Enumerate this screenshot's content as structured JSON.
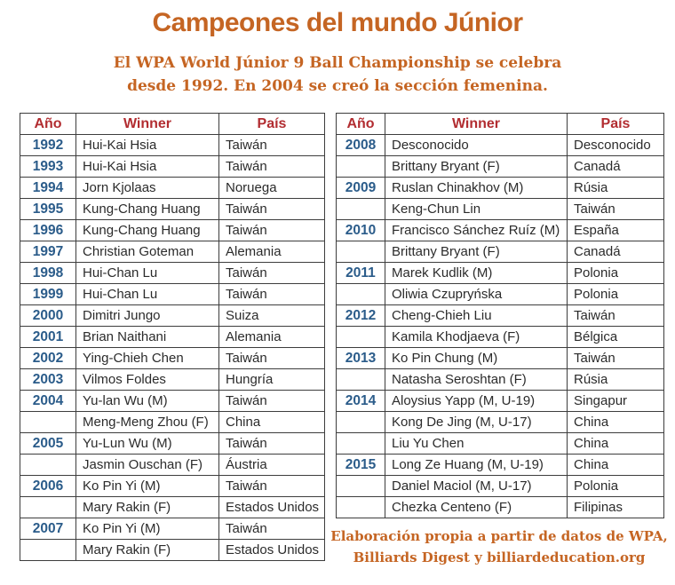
{
  "page": {
    "title": "Campeones del mundo Júnior",
    "subtitle_line1": "El WPA World Júnior 9 Ball Championship se celebra",
    "subtitle_line2": "desde 1992. En 2004 se creó la sección femenina.",
    "footer_line1": "Elaboración propia a partir de datos de WPA,",
    "footer_line2": "Billiards Digest y billiardeducation.org"
  },
  "colors": {
    "accent_orange": "#c56523",
    "header_red": "#b22d31",
    "year_blue": "#2b5c8a",
    "body_text": "#2b2b2b",
    "border": "#3d3d3d"
  },
  "chart_data": [
    {
      "type": "table",
      "title": "Campeones del mundo Júnior (1992-2007)",
      "columns": [
        "Año",
        "Winner",
        "País"
      ],
      "rows": [
        [
          "1992",
          "Hui-Kai Hsia",
          "Taiwán"
        ],
        [
          "1993",
          "Hui-Kai Hsia",
          "Taiwán"
        ],
        [
          "1994",
          "Jorn Kjolaas",
          "Noruega"
        ],
        [
          "1995",
          "Kung-Chang Huang",
          "Taiwán"
        ],
        [
          "1996",
          "Kung-Chang Huang",
          "Taiwán"
        ],
        [
          "1997",
          "Christian Goteman",
          "Alemania"
        ],
        [
          "1998",
          "Hui-Chan Lu",
          "Taiwán"
        ],
        [
          "1999",
          "Hui-Chan Lu",
          "Taiwán"
        ],
        [
          "2000",
          "Dimitri Jungo",
          "Suiza"
        ],
        [
          "2001",
          "Brian Naithani",
          "Alemania"
        ],
        [
          "2002",
          "Ying-Chieh Chen",
          "Taiwán"
        ],
        [
          "2003",
          "Vilmos Foldes",
          "Hungría"
        ],
        [
          "2004",
          "Yu-lan Wu (M)",
          "Taiwán"
        ],
        [
          "",
          "Meng-Meng Zhou (F)",
          "China"
        ],
        [
          "2005",
          "Yu-Lun Wu (M)",
          "Taiwán"
        ],
        [
          "",
          "Jasmin Ouschan (F)",
          "Áustria"
        ],
        [
          "2006",
          "Ko Pin Yi (M)",
          "Taiwán"
        ],
        [
          "",
          "Mary Rakin (F)",
          "Estados Unidos"
        ],
        [
          "2007",
          "Ko Pin Yi (M)",
          "Taiwán"
        ],
        [
          "",
          "Mary Rakin (F)",
          "Estados Unidos"
        ]
      ]
    },
    {
      "type": "table",
      "title": "Campeones del mundo Júnior (2008-2015)",
      "columns": [
        "Año",
        "Winner",
        "País"
      ],
      "rows": [
        [
          "2008",
          "Desconocido",
          "Desconocido"
        ],
        [
          "",
          "Brittany Bryant (F)",
          "Canadá"
        ],
        [
          "2009",
          "Ruslan Chinakhov (M)",
          "Rúsia"
        ],
        [
          "",
          "Keng-Chun Lin",
          "Taiwán"
        ],
        [
          "2010",
          "Francisco Sánchez Ruíz (M)",
          "España"
        ],
        [
          "",
          "Brittany Bryant (F)",
          "Canadá"
        ],
        [
          "2011",
          "Marek Kudlik (M)",
          "Polonia"
        ],
        [
          "",
          "Oliwia Czupryńska",
          "Polonia"
        ],
        [
          "2012",
          "Cheng-Chieh Liu",
          "Taiwán"
        ],
        [
          "",
          "Kamila Khodjaeva (F)",
          "Bélgica"
        ],
        [
          "2013",
          "Ko Pin Chung (M)",
          "Taiwán"
        ],
        [
          "",
          "Natasha Seroshtan (F)",
          "Rúsia"
        ],
        [
          "2014",
          "Aloysius Yapp (M, U-19)",
          "Singapur"
        ],
        [
          "",
          "Kong De Jing (M, U-17)",
          "China"
        ],
        [
          "",
          "Liu Yu Chen",
          "China"
        ],
        [
          "2015",
          "Long Ze Huang (M, U-19)",
          "China"
        ],
        [
          "",
          "Daniel Maciol (M, U-17)",
          "Polonia"
        ],
        [
          "",
          "Chezka Centeno (F)",
          "Filipinas"
        ]
      ]
    }
  ]
}
